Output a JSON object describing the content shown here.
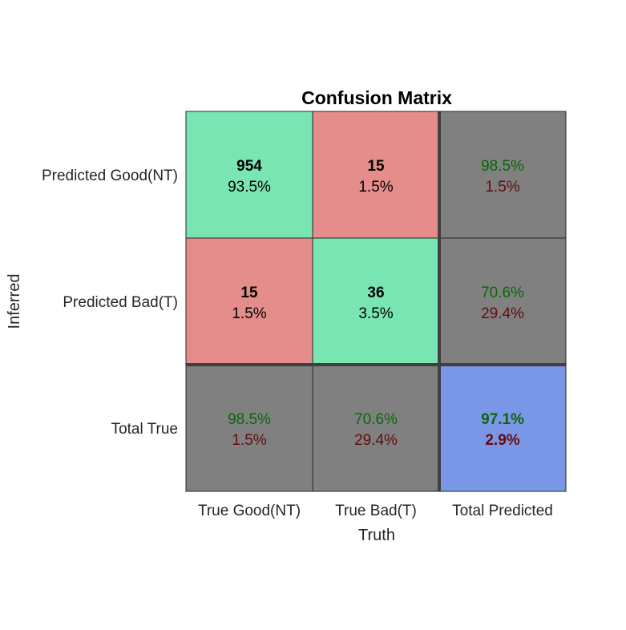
{
  "chart_data": {
    "type": "table",
    "title": "Confusion Matrix",
    "xlabel": "Truth",
    "ylabel": "Inferred",
    "x_tick_labels": [
      "True Good(NT)",
      "True Bad(T)",
      "Total Predicted"
    ],
    "y_tick_labels": [
      "Predicted Good(NT)",
      "Predicted Bad(T)",
      "Total True"
    ],
    "cells": [
      [
        {
          "kind": "correct",
          "count": "954",
          "percent": "93.5%"
        },
        {
          "kind": "error",
          "count": "15",
          "percent": "1.5%"
        },
        {
          "kind": "summary",
          "good": "98.5%",
          "bad": "1.5%"
        }
      ],
      [
        {
          "kind": "error",
          "count": "15",
          "percent": "1.5%"
        },
        {
          "kind": "correct",
          "count": "36",
          "percent": "3.5%"
        },
        {
          "kind": "summary",
          "good": "70.6%",
          "bad": "29.4%"
        }
      ],
      [
        {
          "kind": "summary",
          "good": "98.5%",
          "bad": "1.5%"
        },
        {
          "kind": "summary",
          "good": "70.6%",
          "bad": "29.4%"
        },
        {
          "kind": "overall",
          "good": "97.1%",
          "bad": "2.9%"
        }
      ]
    ],
    "colors": {
      "correct": "#78e5b2",
      "error": "#e58d8b",
      "summary": "#808080",
      "overall": "#7997e6",
      "good_text": "#0c650c",
      "bad_text": "#650c0c",
      "count_text": "#000000",
      "label_text": "#262626"
    },
    "grid": true
  }
}
